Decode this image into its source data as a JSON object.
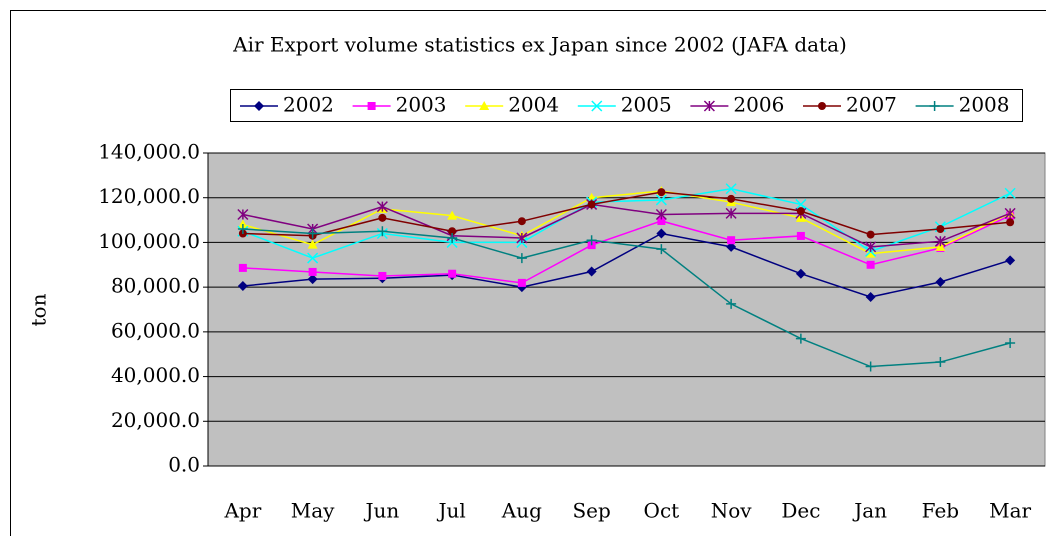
{
  "chart_data": {
    "type": "line",
    "title": "Air Export volume statistics ex Japan since 2002 (JAFA data)",
    "y_label": "ton",
    "categories": [
      "Apr",
      "May",
      "Jun",
      "Jul",
      "Aug",
      "Sep",
      "Oct",
      "Nov",
      "Dec",
      "Jan",
      "Feb",
      "Mar"
    ],
    "series": [
      {
        "name": "2002",
        "color": "#000080",
        "marker": "diamond",
        "values": [
          80500,
          83600,
          84000,
          85400,
          80000,
          87000,
          104000,
          98000,
          86000,
          75600,
          82300,
          92000
        ]
      },
      {
        "name": "2003",
        "color": "#ff00ff",
        "marker": "square",
        "values": [
          88600,
          86800,
          85000,
          86000,
          81900,
          98800,
          109600,
          101000,
          102900,
          90000,
          97500,
          112000
        ]
      },
      {
        "name": "2004",
        "color": "#ffff00",
        "marker": "triangle",
        "values": [
          108000,
          99000,
          115000,
          112000,
          103000,
          120000,
          123000,
          118000,
          111000,
          95000,
          98000,
          113000
        ]
      },
      {
        "name": "2005",
        "color": "#00ffff",
        "marker": "x",
        "values": [
          105000,
          93000,
          104000,
          100000,
          100000,
          118000,
          119000,
          124000,
          117000,
          96000,
          107000,
          122000
        ]
      },
      {
        "name": "2006",
        "color": "#800080",
        "marker": "star",
        "values": [
          112500,
          106000,
          116000,
          103000,
          102000,
          117000,
          112500,
          113000,
          113000,
          98000,
          100500,
          113000
        ]
      },
      {
        "name": "2007",
        "color": "#800000",
        "marker": "circle",
        "values": [
          104000,
          103000,
          111000,
          105000,
          109500,
          117000,
          122500,
          119500,
          114000,
          103500,
          106000,
          109000
        ]
      },
      {
        "name": "2008",
        "color": "#008080",
        "marker": "plus",
        "values": [
          106000,
          104000,
          105000,
          102000,
          93000,
          101000,
          97000,
          72500,
          57000,
          44500,
          46500,
          55000
        ]
      }
    ],
    "ylim": [
      0,
      140000
    ],
    "yticks": [
      {
        "value": 0,
        "label": "0.0"
      },
      {
        "value": 20000,
        "label": "20,000.0"
      },
      {
        "value": 40000,
        "label": "40,000.0"
      },
      {
        "value": 60000,
        "label": "60,000.0"
      },
      {
        "value": 80000,
        "label": "80,000.0"
      },
      {
        "value": 100000,
        "label": "100,000.0"
      },
      {
        "value": 120000,
        "label": "120,000.0"
      },
      {
        "value": 140000,
        "label": "140,000.0"
      }
    ],
    "grid": true,
    "legend": "top"
  }
}
